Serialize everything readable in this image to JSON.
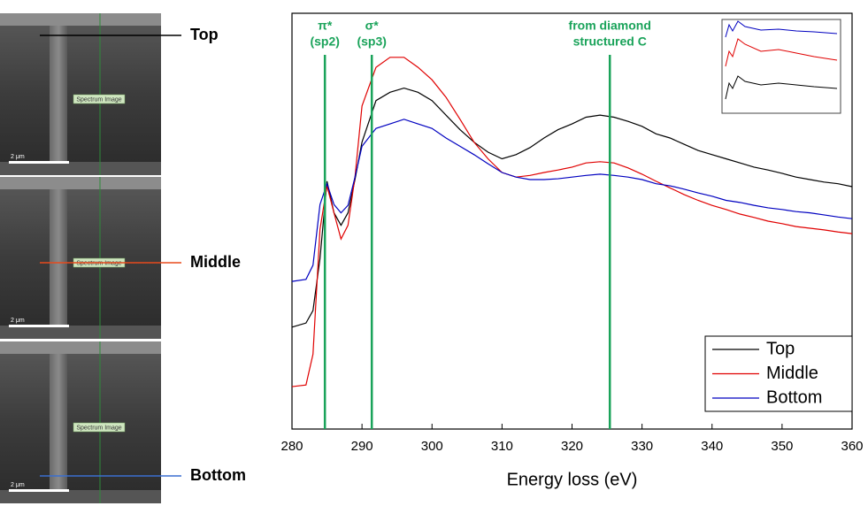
{
  "chart_data": {
    "type": "line",
    "xlabel": "Energy loss (eV)",
    "x": [
      280,
      282,
      283,
      284,
      285,
      286,
      287,
      288,
      289,
      290,
      292,
      294,
      296,
      298,
      300,
      302,
      304,
      306,
      308,
      310,
      312,
      314,
      316,
      318,
      320,
      322,
      324,
      326,
      328,
      330,
      332,
      334,
      336,
      338,
      340,
      342,
      344,
      346,
      348,
      350,
      352,
      354,
      356,
      358,
      360
    ],
    "series": [
      {
        "name": "Top",
        "color": "#000000",
        "values": [
          24.5,
          25.5,
          28.5,
          41,
          59.6,
          52,
          49,
          52,
          60,
          69,
          79,
          81,
          82,
          81,
          79,
          75.5,
          72,
          69,
          66.6,
          65,
          66,
          67.7,
          70,
          72,
          73.4,
          75,
          75.5,
          75,
          74,
          72.8,
          71,
          70,
          68.5,
          67,
          66,
          65,
          64,
          63,
          62.3,
          61.5,
          60.6,
          60,
          59.4,
          59,
          58.3
        ]
      },
      {
        "name": "Middle",
        "color": "#e00000",
        "values": [
          10.2,
          10.6,
          18,
          48,
          58.5,
          52,
          45.7,
          49,
          60.6,
          77.7,
          87,
          89.4,
          89.4,
          87,
          84,
          79.8,
          74.5,
          69,
          65,
          61.7,
          60.6,
          61,
          61.7,
          62.3,
          63,
          64,
          64.3,
          64,
          62.8,
          61.3,
          59.6,
          58,
          56.4,
          55,
          53.8,
          52.8,
          51.7,
          50.9,
          50,
          49.4,
          48.7,
          48.3,
          47.9,
          47.4,
          47
        ]
      },
      {
        "name": "Bottom",
        "color": "#0000c0",
        "values": [
          35.5,
          36,
          39.4,
          54,
          59,
          54,
          52,
          53.8,
          60.6,
          68,
          72.3,
          73.4,
          74.5,
          73.4,
          72.3,
          70,
          68,
          66,
          63.8,
          61.7,
          60.6,
          60,
          60,
          60.2,
          60.6,
          61,
          61.3,
          61,
          60.6,
          60,
          59,
          58.5,
          57.7,
          56.8,
          56,
          55,
          54.5,
          53.8,
          53.2,
          52.8,
          52.3,
          52,
          51.5,
          51,
          50.6
        ]
      }
    ],
    "xlim": [
      280,
      360
    ],
    "xticks": [
      280,
      290,
      300,
      310,
      320,
      330,
      340,
      350,
      360
    ],
    "ylim": [
      0,
      100
    ],
    "legend": "lower right",
    "annotations": [
      {
        "x": 284.7,
        "text": [
          "π*",
          "(sp2)"
        ],
        "color": "#1aa35a"
      },
      {
        "x": 291.4,
        "text": [
          "σ*",
          "(sp3)"
        ],
        "color": "#1aa35a"
      },
      {
        "x": 325.4,
        "text": [
          "from diamond",
          "structured C"
        ],
        "color": "#1aa35a"
      }
    ]
  },
  "sem_images": [
    {
      "caption": "Top",
      "line_color": "#000000",
      "scale_bar": "2 μm",
      "overlay": "Spectrum Image"
    },
    {
      "caption": "Middle",
      "line_color": "#e84a1c",
      "scale_bar": "2 μm",
      "overlay": "Spectrum Image"
    },
    {
      "caption": "Bottom",
      "line_color": "#3a6fd0",
      "scale_bar": "2 μm",
      "overlay": "Spectrum Image"
    }
  ]
}
